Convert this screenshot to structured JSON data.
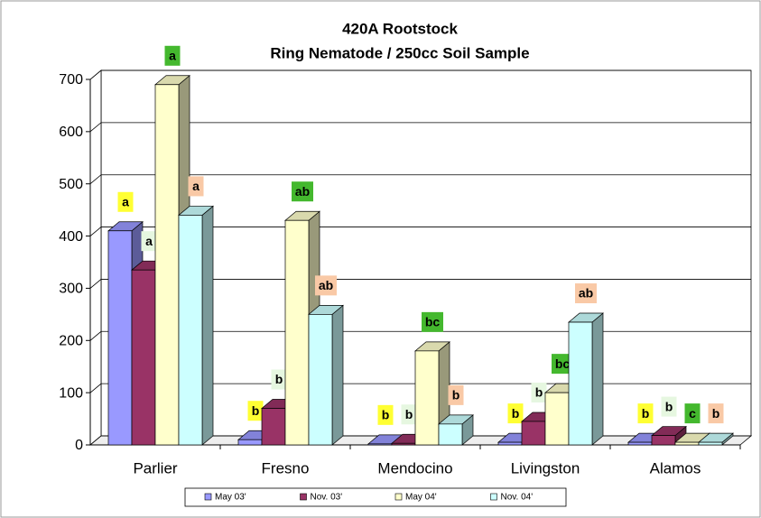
{
  "chart_data": {
    "type": "bar3d",
    "title": "420A Rootstock",
    "subtitle": "Ring Nematode / 250cc Soil Sample",
    "categories": [
      "Parlier",
      "Fresno",
      "Mendocino",
      "Livingston",
      "Alamos"
    ],
    "series": [
      {
        "name": "May 03'",
        "color": "#9999ff",
        "label_color": "#ffff33",
        "values": [
          410,
          10,
          2,
          5,
          5
        ],
        "labels": [
          "a",
          "b",
          "b",
          "b",
          "b"
        ]
      },
      {
        "name": "Nov. 03'",
        "color": "#993366",
        "label_color": "#e6f7e0",
        "values": [
          335,
          70,
          3,
          45,
          18
        ],
        "labels": [
          "a",
          "b",
          "b",
          "b",
          "b"
        ]
      },
      {
        "name": "May 04'",
        "color": "#ffffcc",
        "label_color": "#44b82e",
        "values": [
          690,
          430,
          180,
          100,
          5
        ],
        "labels": [
          "a",
          "ab",
          "bc",
          "bc",
          "c"
        ]
      },
      {
        "name": "Nov. 04'",
        "color": "#ccffff",
        "label_color": "#f9c9a6",
        "values": [
          440,
          250,
          40,
          235,
          5
        ],
        "labels": [
          "a",
          "ab",
          "b",
          "ab",
          "b"
        ]
      }
    ],
    "ylim": [
      0,
      700
    ],
    "yticks": [
      0,
      100,
      200,
      300,
      400,
      500,
      600,
      700
    ],
    "grid": true
  }
}
